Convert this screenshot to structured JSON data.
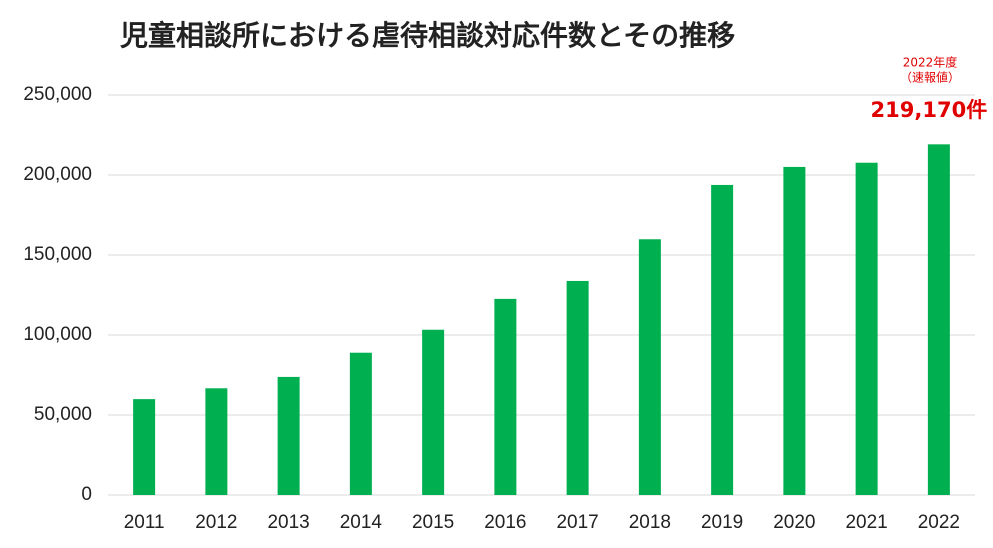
{
  "chart_data": {
    "type": "bar",
    "title": "児童相談所における虐待相談対応件数とその推移",
    "categories": [
      "2011",
      "2012",
      "2013",
      "2014",
      "2015",
      "2016",
      "2017",
      "2018",
      "2019",
      "2020",
      "2021",
      "2022"
    ],
    "values": [
      59919,
      66701,
      73802,
      88931,
      103286,
      122575,
      133778,
      159838,
      193780,
      205044,
      207660,
      219170
    ],
    "value_labels": [
      null,
      null,
      null,
      null,
      null,
      null,
      null,
      null,
      null,
      null,
      null,
      "219,170件"
    ],
    "annotations": [
      "2022年度",
      "（速報値）"
    ],
    "color": "#00b050",
    "value_label_color": "#e00000",
    "ylim": [
      0,
      250000
    ],
    "yticks": [
      0,
      {
        "value": 50000,
        "label": "50,000"
      },
      {
        "value": 100000,
        "label": "100,000"
      },
      {
        "value": 150000,
        "label": "150,000"
      },
      {
        "value": 200000,
        "label": "200,000"
      },
      {
        "value": 250000,
        "label": "250,000"
      }
    ],
    "grid": true
  }
}
